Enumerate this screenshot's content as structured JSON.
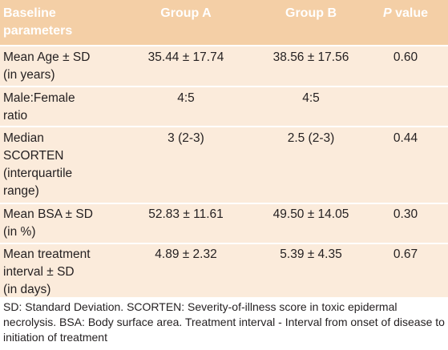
{
  "header": {
    "col0": "Baseline\nparameters",
    "col1": "Group A",
    "col2": "Group B",
    "col3_italic": "P",
    "col3_rest": " value"
  },
  "rows": [
    {
      "param": "Mean Age ± SD\n(in years)",
      "group_a": "35.44 ± 17.74",
      "group_b": "38.56 ± 17.56",
      "p": "0.60"
    },
    {
      "param": "Male:Female\nratio",
      "group_a": "4:5",
      "group_b": "4:5",
      "p": ""
    },
    {
      "param": "Median\nSCORTEN\n(interquartile\nrange)",
      "group_a": "3 (2-3)",
      "group_b": "2.5 (2-3)",
      "p": "0.44"
    },
    {
      "param": "Mean BSA ± SD\n(in %)",
      "group_a": "52.83 ± 11.61",
      "group_b": "49.50  ± 14.05",
      "p": "0.30"
    },
    {
      "param": "Mean treatment\ninterval ± SD\n(in days)",
      "group_a": "4.89 ± 2.32",
      "group_b": "5.39 ± 4.35",
      "p": "0.67"
    }
  ],
  "footnote": "SD: Standard Deviation. SCORTEN: Severity-of-illness score in toxic epidermal necrolysis. BSA: Body surface area. Treatment interval - Interval from onset of disease to initiation of treatment",
  "colors": {
    "header_bg": "#f4cfa6",
    "body_bg": "#fbebdb",
    "header_text": "#ffffff",
    "text": "#231f20"
  }
}
